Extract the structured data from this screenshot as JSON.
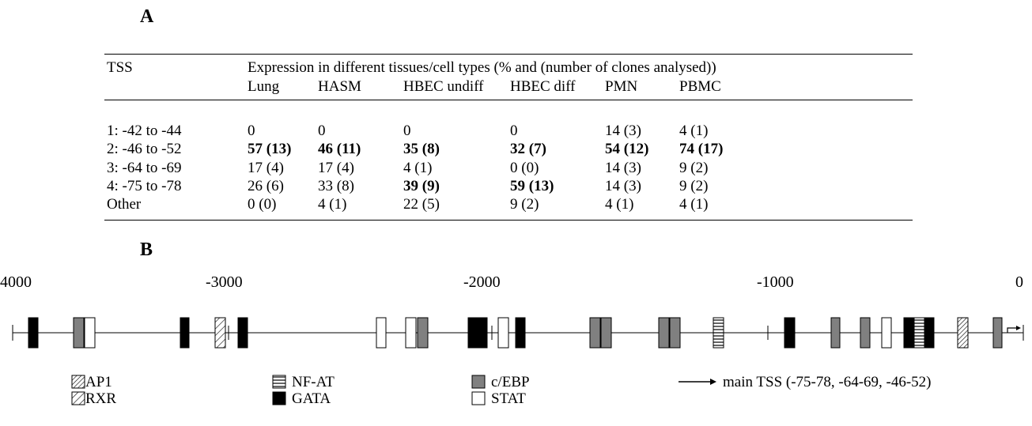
{
  "panels": {
    "a": "A",
    "b": "B"
  },
  "table": {
    "header_tss": "TSS",
    "header_group": "Expression in different tissues/cell types (% and (number of clones analysed))",
    "columns": [
      "Lung",
      "HASM",
      "HBEC undiff",
      "HBEC diff",
      "PMN",
      "PBMC"
    ],
    "rows": [
      {
        "tss": "1: -42 to -44",
        "cells": [
          "0",
          "0",
          "0",
          "0",
          "14 (3)",
          "4 (1)"
        ],
        "bold": [
          false,
          false,
          false,
          false,
          false,
          false
        ]
      },
      {
        "tss": "2: -46 to -52",
        "cells": [
          "57 (13)",
          "46 (11)",
          "35 (8)",
          "32 (7)",
          "54 (12)",
          "74 (17)"
        ],
        "bold": [
          true,
          true,
          true,
          true,
          true,
          true
        ]
      },
      {
        "tss": "3: -64 to -69",
        "cells": [
          "17 (4)",
          "17 (4)",
          "4 (1)",
          "0 (0)",
          "14 (3)",
          "9 (2)"
        ],
        "bold": [
          false,
          false,
          false,
          false,
          false,
          false
        ]
      },
      {
        "tss": "4: -75 to -78",
        "cells": [
          "26 (6)",
          "33 (8)",
          "39 (9)",
          "59 (13)",
          "14 (3)",
          "9 (2)"
        ],
        "bold": [
          false,
          false,
          true,
          true,
          false,
          false
        ]
      },
      {
        "tss": "Other",
        "cells": [
          "0 (0)",
          "4 (1)",
          "22 (5)",
          "9 (2)",
          "4 (1)",
          "4 (1)"
        ],
        "bold": [
          false,
          false,
          false,
          false,
          false,
          false
        ]
      }
    ]
  },
  "diagram": {
    "axis_labels": [
      "4000",
      "-3000",
      "-2000",
      "-1000",
      "0"
    ],
    "site_types": {
      "AP1": "dense-hatch",
      "RXR": "sparse-hatch",
      "NF-AT": "horizontal-stripes",
      "GATA": "#000000",
      "c/EBP": "#808080",
      "STAT": "#ffffff"
    },
    "legend": [
      {
        "type": "AP1",
        "label": "AP1"
      },
      {
        "type": "RXR",
        "label": "RXR"
      },
      {
        "type": "NF-AT",
        "label": "NF-AT"
      },
      {
        "type": "GATA",
        "label": "GATA"
      },
      {
        "type": "c/EBP",
        "label": "c/EBP"
      },
      {
        "type": "STAT",
        "label": "STAT"
      }
    ],
    "main_tss_label": "main TSS (-75-78, -64-69, -46-52)",
    "boxes_in_order": [
      "GATA",
      "c/EBP",
      "STAT",
      "GATA",
      "RXR",
      "GATA",
      "STAT",
      "STAT",
      "c/EBP",
      "GATA",
      "STAT",
      "GATA",
      "c/EBP",
      "c/EBP",
      "c/EBP",
      "c/EBP",
      "NF-AT",
      "GATA",
      "c/EBP",
      "c/EBP",
      "STAT",
      "GATA",
      "NF-AT",
      "GATA",
      "AP1",
      "c/EBP"
    ]
  }
}
